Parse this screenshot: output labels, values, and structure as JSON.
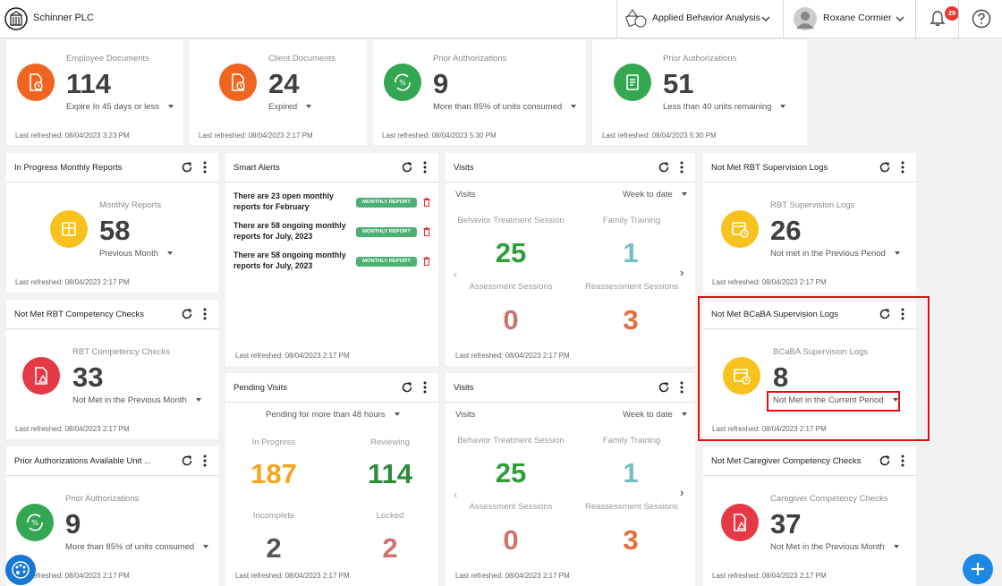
{
  "header": {
    "company": "Schinner PLC",
    "module": "Applied Behavior Analysis",
    "user": "Roxane Cormier",
    "notifications": "29"
  },
  "colors": {
    "orange": "#f06421",
    "green": "#33a752",
    "yellow": "#f7c21d",
    "red": "#e53945",
    "blue": "#1e88e5",
    "badge": "#4caf73",
    "highlight": "#dd1111"
  },
  "top_cards": [
    {
      "title": "Employee Documents",
      "value": "114",
      "filter": "Expire In 45 days or less",
      "refreshed": "Last refreshed: 08/04/2023 3:23 PM",
      "icon": "document-clock-icon"
    },
    {
      "title": "Client Documents",
      "value": "24",
      "filter": "Expired",
      "refreshed": "Last refreshed: 08/04/2023 2:17 PM",
      "icon": "document-clock-icon"
    },
    {
      "title": "Prior Authorizations",
      "value": "9",
      "filter": "More than 85% of units consumed",
      "refreshed": "Last refreshed: 08/04/2023 5:30 PM",
      "icon": "percent-cycle-icon"
    },
    {
      "title": "Prior Authorizations",
      "value": "51",
      "filter": "Less than 40 units remaining",
      "refreshed": "Last refreshed: 08/04/2023 5:30 PM",
      "icon": "clipboard-icon"
    }
  ],
  "monthly_reports": {
    "title": "In Progress Monthly Reports",
    "sub": "Monthly Reports",
    "value": "58",
    "filter": "Previous Month",
    "refreshed": "Last refreshed: 08/04/2023 2:17 PM"
  },
  "rbt_competency": {
    "title": "Not Met RBT Competency Checks",
    "sub": "RBT Competency Checks",
    "value": "33",
    "filter": "Not Met in the Previous Month",
    "refreshed": "Last refreshed: 08/04/2023 2:17 PM"
  },
  "prior_auth_units": {
    "title": "Prior Authorizations Available Unit ...",
    "sub": "Prior Authorizations",
    "value": "9",
    "filter": "More than 85% of units consumed",
    "refreshed": "Last refreshed: 08/04/2023 2:17 PM"
  },
  "smart_alerts": {
    "title": "Smart Alerts",
    "badge": "MONTHLY REPORT",
    "items": [
      "There are 23 open monthly reports for February",
      "There are 58 ongoing monthly reports for July, 2023",
      "There are 58 ongoing monthly reports for July, 2023"
    ],
    "refreshed": "Last refreshed: 08/04/2023 2:17 PM"
  },
  "pending_visits": {
    "title": "Pending Visits",
    "filter": "Pending for more than 48 hours",
    "in_progress_label": "In Progress",
    "in_progress": "187",
    "reviewing_label": "Reviewing",
    "reviewing": "114",
    "incomplete_label": "Incomplete",
    "incomplete": "2",
    "locked_label": "Locked",
    "locked": "2",
    "refreshed": "Last refreshed: 08/04/2023 2:17 PM"
  },
  "visits": {
    "title": "Visits",
    "label": "Visits",
    "period": "Week to date",
    "bts_label": "Behavior Treatment Session",
    "bts": "25",
    "ft_label": "Family Training",
    "ft": "1",
    "as_label": "Assessment Sessions",
    "as": "0",
    "ras_label": "Reassessment Sessions",
    "ras": "3",
    "refreshed": "Last refreshed: 08/04/2023 2:17 PM"
  },
  "rbt_supervision": {
    "title": "Not Met RBT Supervision Logs",
    "sub": "RBT Supervision Logs",
    "value": "26",
    "filter": "Not met in the Previous Period",
    "refreshed": "Last refreshed: 08/04/2023 2:17 PM"
  },
  "bcaba_supervision": {
    "title": "Not Met BCaBA Supervision Logs",
    "sub": "BCaBA Supervision Logs",
    "value": "8",
    "filter": "Not Met in the Current Period",
    "refreshed": "Last refreshed: 08/04/2023 2:17 PM"
  },
  "caregiver_competency": {
    "title": "Not Met Caregiver Competency Checks",
    "sub": "Caregiver Competency Checks",
    "value": "37",
    "filter": "Not Met in the Previous Month",
    "refreshed": "Last refreshed: 08/04/2023 2:17 PM"
  }
}
